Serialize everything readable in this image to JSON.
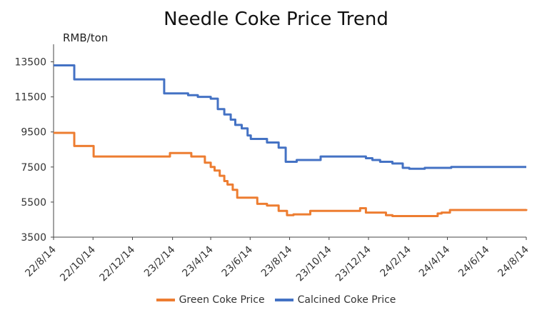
{
  "chart_data": {
    "type": "line",
    "title": "Needle Coke Price Trend",
    "ylabel": "RMB/ton",
    "xlabel": "",
    "ylim": [
      3500,
      14500
    ],
    "yticks": [
      3500,
      5500,
      7500,
      9500,
      11500,
      13500
    ],
    "xlim": [
      "2022-08-14",
      "2024-08-14"
    ],
    "xtick_labels": [
      "22/8/14",
      "22/10/14",
      "22/12/14",
      "23/2/14",
      "23/4/14",
      "23/6/14",
      "23/8/14",
      "23/10/14",
      "23/12/14",
      "24/2/14",
      "24/4/14",
      "24/6/14",
      "24/8/14"
    ],
    "xtick_dates": [
      "2022-08-14",
      "2022-10-14",
      "2022-12-14",
      "2023-02-14",
      "2023-04-14",
      "2023-06-14",
      "2023-08-14",
      "2023-10-14",
      "2023-12-14",
      "2024-02-14",
      "2024-04-14",
      "2024-06-14",
      "2024-08-14"
    ],
    "legend_position": "bottom",
    "grid": false,
    "series": [
      {
        "name": "Green Coke Price",
        "color": "#ED7D31",
        "x": [
          "2022-08-14",
          "2022-09-01",
          "2022-09-15",
          "2022-10-15",
          "2023-02-10",
          "2023-02-25",
          "2023-03-15",
          "2023-04-05",
          "2023-04-14",
          "2023-04-20",
          "2023-04-28",
          "2023-05-05",
          "2023-05-10",
          "2023-05-18",
          "2023-05-25",
          "2023-06-25",
          "2023-07-10",
          "2023-07-28",
          "2023-08-10",
          "2023-08-20",
          "2023-09-15",
          "2023-12-01",
          "2023-12-10",
          "2024-01-10",
          "2024-01-20",
          "2024-03-25",
          "2024-03-30",
          "2024-04-05",
          "2024-04-18",
          "2024-08-14"
        ],
        "values": [
          9450,
          9450,
          8700,
          8100,
          8300,
          8300,
          8100,
          7750,
          7500,
          7300,
          7000,
          6700,
          6500,
          6200,
          5750,
          5400,
          5300,
          5000,
          4750,
          4800,
          5000,
          5150,
          4900,
          4750,
          4700,
          4700,
          4850,
          4900,
          5050,
          5100
        ]
      },
      {
        "name": "Calcined Coke Price",
        "color": "#4472C4",
        "x": [
          "2022-08-14",
          "2022-09-01",
          "2022-09-15",
          "2023-02-01",
          "2023-02-15",
          "2023-03-10",
          "2023-03-25",
          "2023-04-14",
          "2023-04-25",
          "2023-05-05",
          "2023-05-15",
          "2023-05-22",
          "2023-06-01",
          "2023-06-10",
          "2023-06-15",
          "2023-07-10",
          "2023-07-28",
          "2023-08-08",
          "2023-08-15",
          "2023-08-25",
          "2023-09-20",
          "2023-10-01",
          "2023-12-01",
          "2023-12-10",
          "2023-12-20",
          "2024-01-01",
          "2024-01-20",
          "2024-02-05",
          "2024-02-15",
          "2024-03-10",
          "2024-04-20",
          "2024-08-14"
        ],
        "values": [
          13300,
          13300,
          12500,
          11700,
          11700,
          11600,
          11500,
          11400,
          10800,
          10500,
          10200,
          9900,
          9700,
          9300,
          9100,
          8900,
          8600,
          7800,
          7800,
          7900,
          7900,
          8100,
          8100,
          8000,
          7900,
          7800,
          7700,
          7450,
          7400,
          7450,
          7500,
          7500
        ]
      }
    ]
  }
}
